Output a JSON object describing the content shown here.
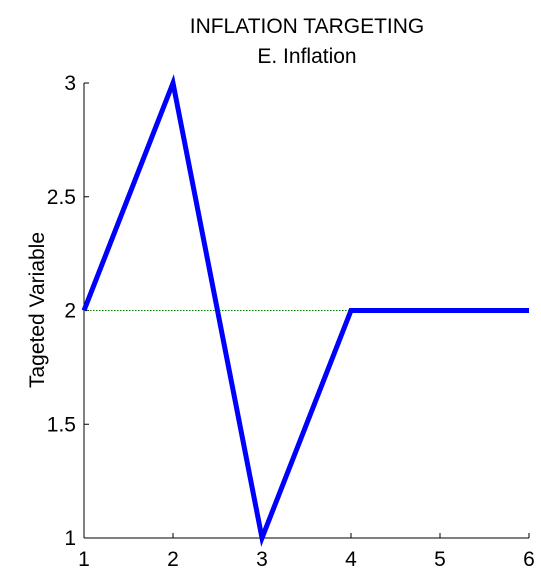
{
  "chart_data": {
    "type": "line",
    "title": "INFLATION TARGETING",
    "subtitle": "E. Inflation",
    "xlabel": "",
    "ylabel": "Tageted Variable",
    "xlim": [
      1,
      6
    ],
    "ylim": [
      1,
      3
    ],
    "x_ticks": [
      "1",
      "2",
      "3",
      "4",
      "5",
      "6"
    ],
    "y_ticks": [
      "1",
      "1.5",
      "2",
      "2.5",
      "3"
    ],
    "grid": false,
    "series": [
      {
        "color": "#0000ff",
        "style": "solid",
        "x": [
          1,
          2,
          3,
          4,
          5,
          6
        ],
        "values": [
          2,
          3,
          1,
          2,
          2,
          2
        ]
      },
      {
        "color": "#008000",
        "style": "dotted",
        "x": [
          1,
          6
        ],
        "values": [
          2,
          2
        ]
      }
    ]
  }
}
